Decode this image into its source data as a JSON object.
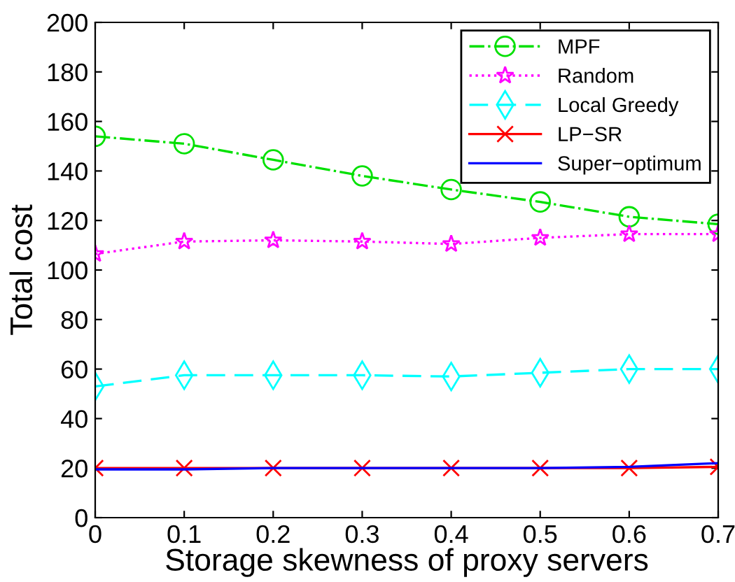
{
  "chart_data": {
    "type": "line",
    "xlabel": "Storage skewness of proxy servers",
    "ylabel": "Total cost",
    "x": [
      0,
      0.1,
      0.2,
      0.3,
      0.4,
      0.5,
      0.6,
      0.7
    ],
    "xlim": [
      0,
      0.7
    ],
    "xticks": [
      0,
      0.1,
      0.2,
      0.3,
      0.4,
      0.5,
      0.6,
      0.7
    ],
    "ylim": [
      0,
      200
    ],
    "yticks": [
      0,
      20,
      40,
      60,
      80,
      100,
      120,
      140,
      160,
      180,
      200
    ],
    "grid": false,
    "legend": "top right",
    "series": [
      {
        "name": "MPF",
        "color": "#00e000",
        "marker": "circle",
        "line_style": "dashdot",
        "values": [
          154,
          151,
          144.5,
          138,
          132.5,
          127.5,
          121.5,
          118.5
        ]
      },
      {
        "name": "Random",
        "color": "#ff00ff",
        "marker": "star",
        "line_style": "dotted",
        "values": [
          106.5,
          111.5,
          112,
          111.5,
          110.5,
          113,
          114.5,
          114.5
        ]
      },
      {
        "name": "Local Greedy",
        "color": "#00ffff",
        "marker": "diamond",
        "line_style": "dashed",
        "values": [
          53,
          57.5,
          57.5,
          57.5,
          57,
          58.5,
          60,
          60
        ]
      },
      {
        "name": "LP−SR",
        "color": "#ff0000",
        "marker": "cross",
        "line_style": "solid",
        "values": [
          20,
          20,
          20,
          20,
          20,
          20,
          20,
          20.5
        ]
      },
      {
        "name": "Super−optimum",
        "color": "#0000ff",
        "marker": "none",
        "line_style": "solid",
        "values": [
          19.5,
          19.5,
          20,
          20,
          20,
          20,
          20.5,
          22
        ]
      }
    ]
  }
}
